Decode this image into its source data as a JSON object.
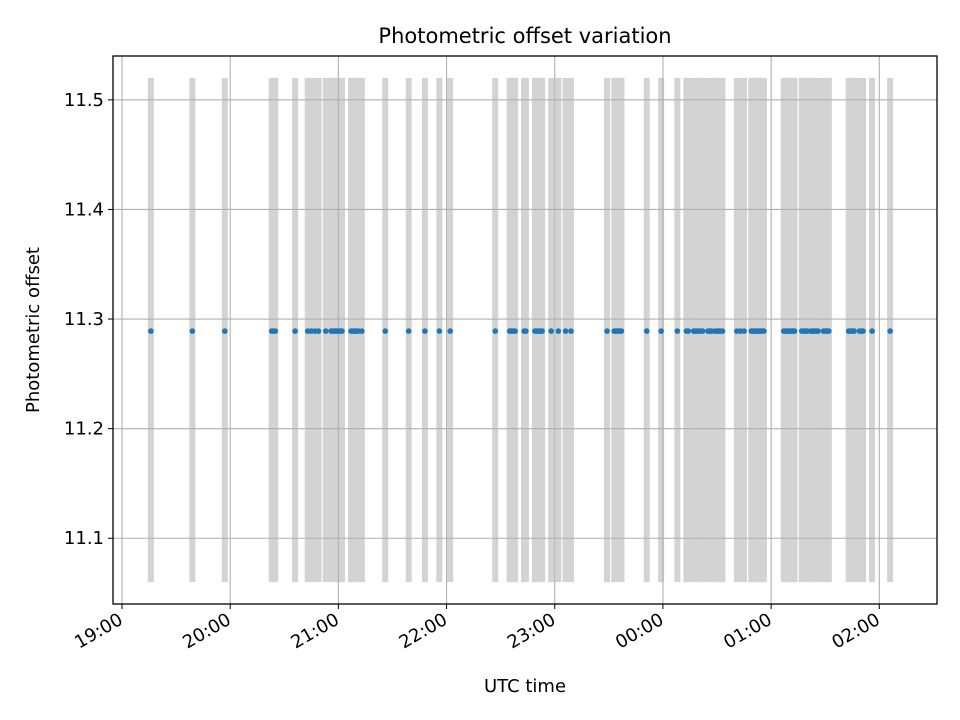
{
  "chart_data": {
    "type": "scatter",
    "title": "Photometric offset variation",
    "xlabel": "UTC time",
    "ylabel": "Photometric offset",
    "x_unit": "UTC time of day (hh:mm), axis spans 18:55 to 02:32",
    "xlim": [
      "18:55",
      "02:32"
    ],
    "ylim": [
      11.04,
      11.54
    ],
    "x_ticks": [
      "19:00",
      "20:00",
      "21:00",
      "22:00",
      "23:00",
      "00:00",
      "01:00",
      "02:00"
    ],
    "y_ticks": [
      "11.1",
      "11.2",
      "11.3",
      "11.4",
      "11.5"
    ],
    "grid": true,
    "series": [
      {
        "marker": "point",
        "color": "#1f77b4",
        "y_value": 11.289,
        "x": [
          "19:16",
          "19:39",
          "19:57",
          "20:23",
          "20:24",
          "20:25",
          "20:36",
          "20:43",
          "20:45",
          "20:47",
          "20:49",
          "20:53",
          "20:56",
          "20:57",
          "20:58",
          "20:59",
          "21:00",
          "21:01",
          "21:02",
          "21:07",
          "21:08",
          "21:09",
          "21:10",
          "21:11",
          "21:13",
          "21:26",
          "21:39",
          "21:48",
          "21:56",
          "22:02",
          "22:27",
          "22:35",
          "22:36",
          "22:37",
          "22:38",
          "22:43",
          "22:44",
          "22:49",
          "22:50",
          "22:51",
          "22:52",
          "22:53",
          "22:58",
          "23:02",
          "23:06",
          "23:09",
          "23:29",
          "23:33",
          "23:34",
          "23:35",
          "23:36",
          "23:37",
          "23:51",
          "23:59",
          "00:08",
          "00:13",
          "00:14",
          "00:17",
          "00:18",
          "00:19",
          "00:20",
          "00:21",
          "00:22",
          "00:25",
          "00:26",
          "00:27",
          "00:29",
          "00:30",
          "00:31",
          "00:32",
          "00:33",
          "00:41",
          "00:43",
          "00:45",
          "00:49",
          "00:50",
          "00:51",
          "00:52",
          "00:53",
          "00:54",
          "00:55",
          "00:56",
          "01:07",
          "01:08",
          "01:09",
          "01:10",
          "01:11",
          "01:12",
          "01:13",
          "01:17",
          "01:18",
          "01:19",
          "01:20",
          "01:22",
          "01:23",
          "01:24",
          "01:25",
          "01:26",
          "01:29",
          "01:30",
          "01:31",
          "01:32",
          "01:43",
          "01:44",
          "01:45",
          "01:46",
          "01:49",
          "01:50",
          "01:51",
          "01:56",
          "02:06"
        ]
      }
    ],
    "background_bands": {
      "color": "#d3d3d3",
      "y_range": [
        11.06,
        11.52
      ],
      "x": [
        "19:16",
        "19:39",
        "19:57",
        "20:23",
        "20:24",
        "20:25",
        "20:36",
        "20:43",
        "20:45",
        "20:47",
        "20:49",
        "20:53",
        "20:56",
        "20:57",
        "20:58",
        "20:59",
        "21:00",
        "21:01",
        "21:02",
        "21:07",
        "21:08",
        "21:09",
        "21:10",
        "21:11",
        "21:13",
        "21:26",
        "21:39",
        "21:48",
        "21:56",
        "22:02",
        "22:27",
        "22:35",
        "22:36",
        "22:37",
        "22:38",
        "22:43",
        "22:44",
        "22:49",
        "22:50",
        "22:51",
        "22:52",
        "22:53",
        "22:58",
        "23:02",
        "23:06",
        "23:09",
        "23:29",
        "23:33",
        "23:34",
        "23:35",
        "23:36",
        "23:37",
        "23:51",
        "23:59",
        "00:08",
        "00:13",
        "00:14",
        "00:17",
        "00:18",
        "00:19",
        "00:20",
        "00:21",
        "00:22",
        "00:25",
        "00:26",
        "00:27",
        "00:29",
        "00:30",
        "00:31",
        "00:32",
        "00:33",
        "00:41",
        "00:43",
        "00:45",
        "00:49",
        "00:50",
        "00:51",
        "00:52",
        "00:53",
        "00:54",
        "00:55",
        "00:56",
        "01:07",
        "01:08",
        "01:09",
        "01:10",
        "01:11",
        "01:12",
        "01:13",
        "01:17",
        "01:18",
        "01:19",
        "01:20",
        "01:22",
        "01:23",
        "01:24",
        "01:25",
        "01:26",
        "01:29",
        "01:30",
        "01:31",
        "01:32",
        "01:43",
        "01:44",
        "01:45",
        "01:46",
        "01:49",
        "01:50",
        "01:51",
        "01:56",
        "02:06"
      ]
    }
  },
  "colors": {
    "point": "#1f77b4",
    "band": "#d3d3d3",
    "grid": "#b0b0b0",
    "axes": "#000000",
    "background": "#ffffff"
  }
}
